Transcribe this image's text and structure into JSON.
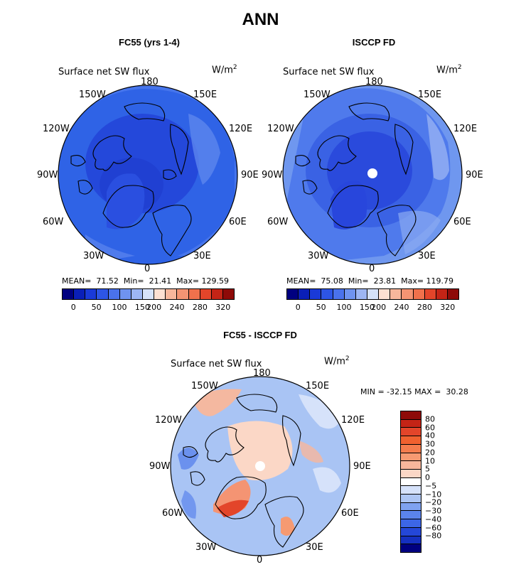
{
  "title": "ANN",
  "colors": {
    "model_fill": "#3f6fe8",
    "model_outer": "#2f63e6",
    "model_core": "#2040d8",
    "obs_fill": "#3d6ee8",
    "obs_outer": "#6f97ef",
    "obs_core": "#2848dc",
    "diff_base": "#a9c4f4",
    "diff_warm": "#f4b8a0",
    "pole_hole": "#ffffff"
  },
  "panels": [
    {
      "title": "FC55 (yrs 1-4)",
      "variable": "Surface net SW flux",
      "units": "W/m",
      "units_sup": "2",
      "stats": "MEAN=  71.52  Min=  21.41  Max= 129.59"
    },
    {
      "title": "ISCCP FD",
      "variable": "Surface net SW flux",
      "units": "W/m",
      "units_sup": "2",
      "stats": "MEAN=  75.08  Min=  23.81  Max= 119.79"
    },
    {
      "title": "FC55 - ISCCP FD",
      "variable": "Surface net SW flux",
      "units": "W/m",
      "units_sup": "2",
      "stats": "MIN = -32.15 MAX =  30.28"
    }
  ],
  "lon_labels": {
    "top": "180",
    "bottom": "0",
    "l150": "150W",
    "r150": "150E",
    "l120": "120W",
    "r120": "120E",
    "l90": "90W",
    "r90": "90E",
    "l60": "60W",
    "r60": "60E",
    "l30": "30W",
    "r30": "30E"
  },
  "abs_colorbar": {
    "colors": [
      "#000080",
      "#0a1fb8",
      "#1a3ad8",
      "#2d55e6",
      "#4a72ec",
      "#6f93f0",
      "#9db6f4",
      "#d6e2fa",
      "#fde0d2",
      "#f8b79c",
      "#f49473",
      "#f0714c",
      "#e3452a",
      "#c42416",
      "#8e0a08"
    ],
    "ticks": [
      "0",
      "50",
      "100",
      "150",
      "200",
      "240",
      "280",
      "320"
    ]
  },
  "diff_colorbar": {
    "colors": [
      "#8e0a08",
      "#c42416",
      "#e3452a",
      "#f0612f",
      "#f47c4d",
      "#f69a72",
      "#f8b79c",
      "#fbd7c6",
      "#ffffff",
      "#d6e2fa",
      "#aec6f4",
      "#7fa2f0",
      "#5b84ec",
      "#3c66e6",
      "#2447d8",
      "#1530c0",
      "#000080"
    ],
    "ticks": [
      "80",
      "60",
      "40",
      "30",
      "20",
      "10",
      "5",
      "0",
      "−5",
      "−10",
      "−20",
      "−30",
      "−40",
      "−60",
      "−80"
    ]
  }
}
